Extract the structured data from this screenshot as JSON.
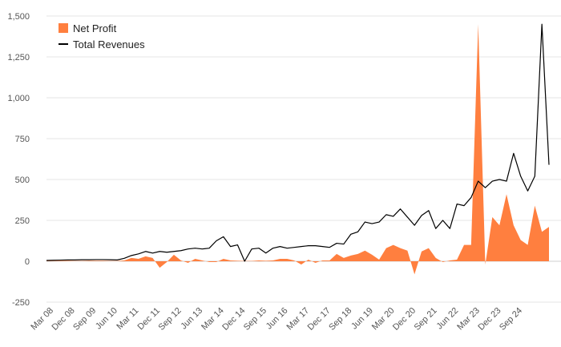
{
  "chart_data": {
    "type": "area",
    "colors": {
      "net_profit": "#ff7f3f",
      "total_revenues": "#000000",
      "grid": "#e6e6e6"
    },
    "ylim": [
      -250,
      1500
    ],
    "yticks": [
      -250,
      0,
      250,
      500,
      750,
      1000,
      1250,
      1500
    ],
    "ytick_labels": [
      "-250",
      "0",
      "250",
      "500",
      "750",
      "1,000",
      "1,250",
      "1,500"
    ],
    "xtick_labels": [
      "Mar 08",
      "Dec 08",
      "Sep 09",
      "Jun 10",
      "Mar 11",
      "Dec 11",
      "Sep 12",
      "Jun 13",
      "Mar 14",
      "Dec 14",
      "Sep 15",
      "Jun 16",
      "Mar 17",
      "Dec 17",
      "Sep 18",
      "Jun 19",
      "Mar 20",
      "Dec 20",
      "Sep 21",
      "Jun 22",
      "Mar 23",
      "Dec 23",
      "Sep 24"
    ],
    "grid": true,
    "legend": {
      "placement": "top-left",
      "items": [
        {
          "name": "Net Profit",
          "marker": "square"
        },
        {
          "name": "Total Revenues",
          "marker": "line"
        }
      ]
    },
    "series": [
      {
        "name": "Net Profit",
        "kind": "area",
        "values": [
          2,
          2,
          3,
          3,
          2,
          2,
          3,
          3,
          3,
          2,
          2,
          5,
          20,
          15,
          30,
          20,
          -40,
          -5,
          40,
          5,
          -10,
          15,
          5,
          -5,
          -5,
          15,
          5,
          3,
          2,
          2,
          5,
          3,
          5,
          15,
          15,
          5,
          -20,
          10,
          -10,
          5,
          5,
          45,
          20,
          35,
          45,
          65,
          40,
          10,
          80,
          100,
          80,
          65,
          -80,
          60,
          80,
          20,
          -5,
          5,
          10,
          100,
          100,
          1450,
          -20,
          270,
          220,
          410,
          220,
          130,
          100,
          340,
          180,
          210
        ]
      },
      {
        "name": "Total Revenues",
        "kind": "line",
        "values": [
          5,
          6,
          7,
          8,
          8,
          9,
          9,
          10,
          10,
          9,
          8,
          18,
          35,
          45,
          60,
          50,
          60,
          55,
          60,
          65,
          75,
          80,
          75,
          80,
          125,
          150,
          90,
          100,
          0,
          75,
          80,
          50,
          80,
          90,
          80,
          85,
          90,
          95,
          95,
          90,
          85,
          110,
          105,
          165,
          180,
          240,
          230,
          240,
          285,
          275,
          320,
          270,
          220,
          280,
          310,
          200,
          250,
          200,
          350,
          340,
          390,
          490,
          450,
          490,
          500,
          490,
          660,
          520,
          430,
          520,
          1450,
          590
        ]
      }
    ]
  }
}
